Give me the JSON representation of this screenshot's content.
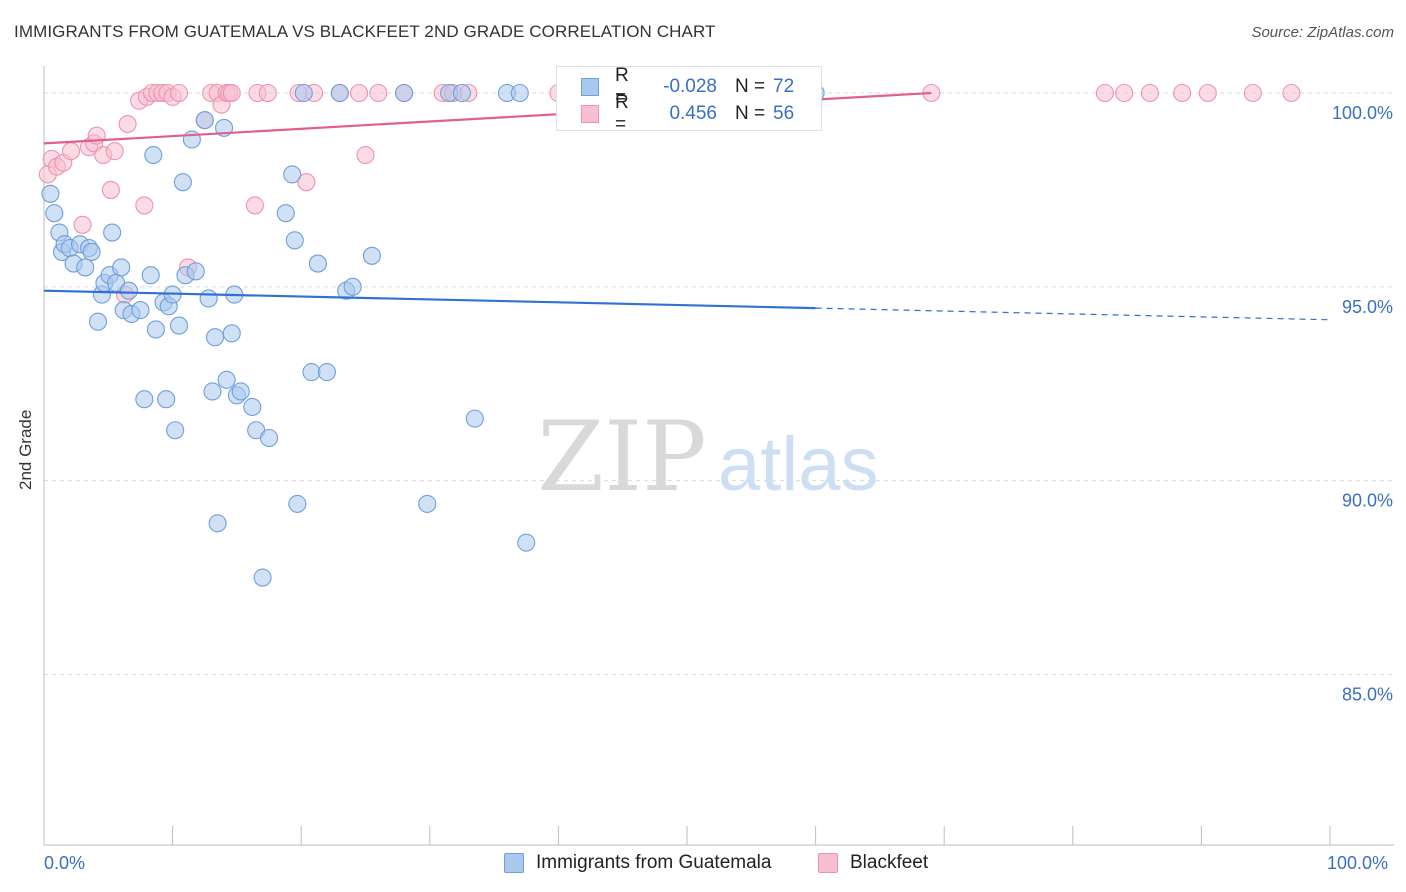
{
  "title": "IMMIGRANTS FROM GUATEMALA VS BLACKFEET 2ND GRADE CORRELATION CHART",
  "source": "Source: ZipAtlas.com",
  "watermark": {
    "zip": "ZIP",
    "atlas": "atlas"
  },
  "legend": {
    "series1": {
      "r_label": "R =",
      "r_value": "-0.028",
      "n_label": "N =",
      "n_value": "72"
    },
    "series2": {
      "r_label": "R =",
      "r_value": "0.456",
      "n_label": "N =",
      "n_value": "56"
    }
  },
  "bottom_legend": {
    "series1": "Immigrants from Guatemala",
    "series2": "Blackfeet"
  },
  "colors": {
    "series1_fill": "#a9c8ee",
    "series1_stroke": "#6f9fdc",
    "series1_line": "#2f72d0",
    "series2_fill": "#f7bfd0",
    "series2_stroke": "#ee93ae",
    "series2_line": "#e0608a",
    "axis_text": "#3a6fc4",
    "grid": "#d9d9d9"
  },
  "chart_data": {
    "type": "scatter",
    "title": "IMMIGRANTS FROM GUATEMALA VS BLACKFEET 2ND GRADE CORRELATION CHART",
    "xlabel": "",
    "ylabel": "2nd Grade",
    "xlim": [
      0,
      100
    ],
    "ylim": [
      80.6,
      100.8
    ],
    "x_tick_labels": [
      "0.0%",
      "100.0%"
    ],
    "y_ticks": [
      85,
      90,
      95,
      100
    ],
    "y_tick_labels": [
      "85.0%",
      "90.0%",
      "95.0%",
      "100.0%"
    ],
    "series": [
      {
        "name": "Immigrants from Guatemala",
        "r": -0.028,
        "n": 72,
        "trend": {
          "x0": 0,
          "y0": 94.9,
          "x1": 60,
          "y1": 94.45,
          "dash_x1": 100,
          "dash_y1": 94.15
        },
        "points": [
          [
            0.5,
            97.4
          ],
          [
            0.8,
            96.9
          ],
          [
            1.2,
            96.4
          ],
          [
            1.4,
            95.9
          ],
          [
            1.6,
            96.1
          ],
          [
            2.0,
            96.0
          ],
          [
            2.3,
            95.6
          ],
          [
            2.8,
            96.1
          ],
          [
            3.2,
            95.5
          ],
          [
            3.5,
            96.0
          ],
          [
            3.7,
            95.9
          ],
          [
            4.2,
            94.1
          ],
          [
            4.5,
            94.8
          ],
          [
            4.7,
            95.1
          ],
          [
            5.1,
            95.3
          ],
          [
            5.3,
            96.4
          ],
          [
            5.6,
            95.1
          ],
          [
            6.0,
            95.5
          ],
          [
            6.2,
            94.4
          ],
          [
            6.6,
            94.9
          ],
          [
            6.8,
            94.3
          ],
          [
            7.5,
            94.4
          ],
          [
            7.8,
            92.1
          ],
          [
            8.3,
            95.3
          ],
          [
            8.5,
            98.4
          ],
          [
            8.7,
            93.9
          ],
          [
            9.3,
            94.6
          ],
          [
            9.5,
            92.1
          ],
          [
            9.7,
            94.5
          ],
          [
            10.0,
            94.8
          ],
          [
            10.2,
            91.3
          ],
          [
            10.5,
            94.0
          ],
          [
            10.8,
            97.7
          ],
          [
            11.0,
            95.3
          ],
          [
            11.5,
            98.8
          ],
          [
            11.8,
            95.4
          ],
          [
            12.5,
            99.3
          ],
          [
            12.8,
            94.7
          ],
          [
            13.1,
            92.3
          ],
          [
            13.3,
            93.7
          ],
          [
            13.5,
            88.9
          ],
          [
            14.0,
            99.1
          ],
          [
            14.2,
            92.6
          ],
          [
            14.6,
            93.8
          ],
          [
            14.8,
            94.8
          ],
          [
            15.0,
            92.2
          ],
          [
            15.3,
            92.3
          ],
          [
            16.2,
            91.9
          ],
          [
            16.5,
            91.3
          ],
          [
            17.0,
            87.5
          ],
          [
            17.5,
            91.1
          ],
          [
            18.8,
            96.9
          ],
          [
            19.3,
            97.9
          ],
          [
            19.5,
            96.2
          ],
          [
            19.7,
            89.4
          ],
          [
            20.2,
            100.0
          ],
          [
            20.8,
            92.8
          ],
          [
            21.3,
            95.6
          ],
          [
            22.0,
            92.8
          ],
          [
            23.0,
            100.0
          ],
          [
            23.5,
            94.9
          ],
          [
            24.0,
            95.0
          ],
          [
            25.5,
            95.8
          ],
          [
            28.0,
            100.0
          ],
          [
            29.8,
            89.4
          ],
          [
            31.5,
            100.0
          ],
          [
            32.5,
            100.0
          ],
          [
            33.5,
            91.6
          ],
          [
            36.0,
            100.0
          ],
          [
            37.0,
            100.0
          ],
          [
            37.5,
            88.4
          ],
          [
            60.0,
            100.0
          ]
        ]
      },
      {
        "name": "Blackfeet",
        "r": 0.456,
        "n": 56,
        "trend": {
          "x0": 0,
          "y0": 98.7,
          "x1": 69,
          "y1": 100.0
        },
        "points": [
          [
            0.3,
            97.9
          ],
          [
            0.6,
            98.3
          ],
          [
            1.0,
            98.1
          ],
          [
            1.5,
            98.2
          ],
          [
            2.1,
            98.5
          ],
          [
            3.0,
            96.6
          ],
          [
            3.5,
            98.6
          ],
          [
            3.9,
            98.7
          ],
          [
            4.1,
            98.9
          ],
          [
            4.6,
            98.4
          ],
          [
            5.2,
            97.5
          ],
          [
            5.5,
            98.5
          ],
          [
            6.3,
            94.8
          ],
          [
            6.5,
            99.2
          ],
          [
            7.4,
            99.8
          ],
          [
            7.8,
            97.1
          ],
          [
            8.0,
            99.9
          ],
          [
            8.4,
            100.0
          ],
          [
            8.8,
            100.0
          ],
          [
            9.2,
            100.0
          ],
          [
            9.6,
            100.0
          ],
          [
            10.0,
            99.9
          ],
          [
            10.5,
            100.0
          ],
          [
            11.2,
            95.5
          ],
          [
            12.5,
            99.3
          ],
          [
            13.0,
            100.0
          ],
          [
            13.5,
            100.0
          ],
          [
            13.8,
            99.7
          ],
          [
            14.2,
            100.0
          ],
          [
            14.4,
            100.0
          ],
          [
            14.6,
            100.0
          ],
          [
            16.4,
            97.1
          ],
          [
            16.6,
            100.0
          ],
          [
            17.4,
            100.0
          ],
          [
            19.8,
            100.0
          ],
          [
            20.4,
            97.7
          ],
          [
            21.0,
            100.0
          ],
          [
            23.0,
            100.0
          ],
          [
            24.5,
            100.0
          ],
          [
            25.0,
            98.4
          ],
          [
            26.0,
            100.0
          ],
          [
            28.0,
            100.0
          ],
          [
            31.0,
            100.0
          ],
          [
            31.8,
            100.0
          ],
          [
            33.0,
            100.0
          ],
          [
            40.0,
            100.0
          ],
          [
            43.5,
            100.0
          ],
          [
            46.0,
            100.0
          ],
          [
            69.0,
            100.0
          ],
          [
            82.5,
            100.0
          ],
          [
            84.0,
            100.0
          ],
          [
            86.0,
            100.0
          ],
          [
            88.5,
            100.0
          ],
          [
            90.5,
            100.0
          ],
          [
            94.0,
            100.0
          ],
          [
            97.0,
            100.0
          ]
        ]
      }
    ]
  }
}
